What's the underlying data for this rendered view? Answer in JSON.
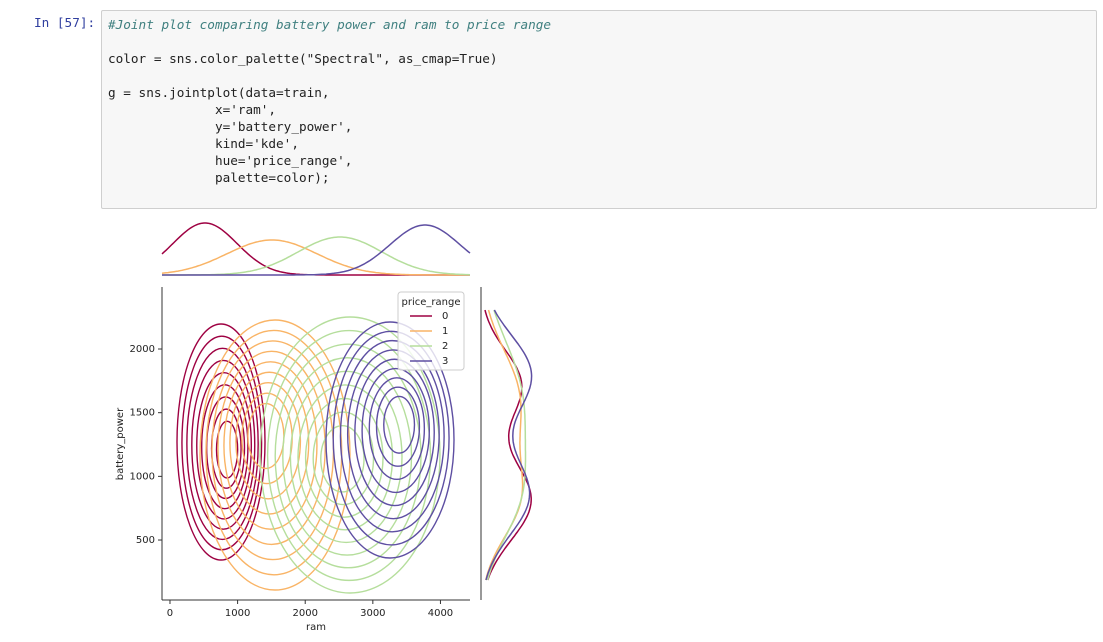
{
  "cell": {
    "prompt": "In [57]:",
    "code_blocks": [
      [
        "#Joint plot comparing battery power and ram to price range"
      ],
      [
        "color = sns.color_palette(\"Spectral\", as_cmap=True)"
      ],
      [
        "g = sns.jointplot(data=train,",
        "              x='ram',",
        "              y='battery_power',",
        "              kind='kde',",
        "              hue='price_range',",
        "              palette=color);"
      ]
    ]
  },
  "chart_data": {
    "type": "kde",
    "x_label": "ram",
    "y_label": "battery_power",
    "xlim": [
      -118,
      4437
    ],
    "ylim": [
      29,
      2487
    ],
    "xticks": [
      0,
      1000,
      2000,
      3000,
      4000
    ],
    "yticks": [
      500,
      1000,
      1500,
      2000
    ],
    "legend": {
      "title": "price_range",
      "position": "upper right"
    },
    "series": [
      {
        "name": "0",
        "color": "#9e0142"
      },
      {
        "name": "1",
        "color": "#f9b466"
      },
      {
        "name": "2",
        "color": "#b5de9c"
      },
      {
        "name": "3",
        "color": "#5e4fa2"
      }
    ]
  }
}
